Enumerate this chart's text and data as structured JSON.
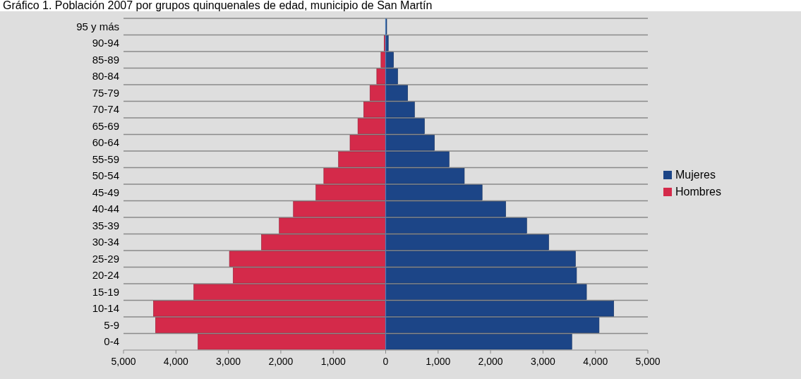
{
  "chart_data": {
    "type": "bar",
    "orientation": "horizontal",
    "stacked": true,
    "title": "Gráfico 1. Población 2007 por grupos quinquenales de edad, municipio de San Martín",
    "categories": [
      "95 y más",
      "90-94",
      "85-89",
      "80-84",
      "75-79",
      "70-74",
      "65-69",
      "60-64",
      "55-59",
      "50-54",
      "45-49",
      "40-44",
      "35-39",
      "30-34",
      "25-29",
      "20-24",
      "15-19",
      "10-14",
      "5-9",
      "0-4"
    ],
    "series": [
      {
        "name": "Mujeres",
        "color": "#1c4587",
        "values": [
          20,
          50,
          150,
          230,
          420,
          550,
          740,
          930,
          1210,
          1500,
          1840,
          2290,
          2690,
          3110,
          3620,
          3640,
          3830,
          4350,
          4070,
          3550
        ]
      },
      {
        "name": "Hombres",
        "color": "#d42a4a",
        "values": [
          0,
          -30,
          -90,
          -170,
          -300,
          -420,
          -530,
          -680,
          -900,
          -1180,
          -1330,
          -1760,
          -2030,
          -2370,
          -2980,
          -2910,
          -3660,
          -4430,
          -4390,
          -3580
        ]
      }
    ],
    "xlim": [
      -5000,
      5000
    ],
    "xticks": [
      {
        "value": -5000,
        "label": "5,000"
      },
      {
        "value": -4000,
        "label": "4,000"
      },
      {
        "value": -3000,
        "label": "3,000"
      },
      {
        "value": -2000,
        "label": "2,000"
      },
      {
        "value": -1000,
        "label": "1,000"
      },
      0,
      {
        "value": 1000,
        "label": "1,000"
      },
      {
        "value": 2000,
        "label": "2,000"
      },
      {
        "value": 3000,
        "label": "3,000"
      },
      {
        "value": 4000,
        "label": "4,000"
      },
      {
        "value": 5000,
        "label": "5,000"
      }
    ],
    "ref_lines": [
      {
        "axis": "x",
        "value": 0,
        "color": "#4a7ebb"
      }
    ],
    "grid": "y",
    "legend": "right"
  }
}
